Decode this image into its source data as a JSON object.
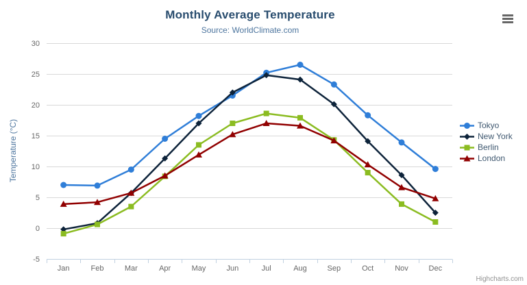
{
  "chart": {
    "title": "Monthly Average Temperature",
    "subtitle": "Source: WorldClimate.com",
    "y_axis_title": "Temperature (°C)",
    "credits": "Highcharts.com"
  },
  "chart_data": {
    "type": "line",
    "categories": [
      "Jan",
      "Feb",
      "Mar",
      "Apr",
      "May",
      "Jun",
      "Jul",
      "Aug",
      "Sep",
      "Oct",
      "Nov",
      "Dec"
    ],
    "series": [
      {
        "name": "Tokyo",
        "color": "#2f7ed8",
        "marker": "circle",
        "values": [
          7.0,
          6.9,
          9.5,
          14.5,
          18.2,
          21.5,
          25.2,
          26.5,
          23.3,
          18.3,
          13.9,
          9.6
        ]
      },
      {
        "name": "New York",
        "color": "#0d233a",
        "marker": "diamond",
        "values": [
          -0.2,
          0.8,
          5.7,
          11.3,
          17.0,
          22.0,
          24.8,
          24.1,
          20.1,
          14.1,
          8.6,
          2.5
        ]
      },
      {
        "name": "Berlin",
        "color": "#8bbc21",
        "marker": "square",
        "values": [
          -0.9,
          0.6,
          3.5,
          8.4,
          13.5,
          17.0,
          18.6,
          17.9,
          14.3,
          9.0,
          3.9,
          1.0
        ]
      },
      {
        "name": "London",
        "color": "#910000",
        "marker": "triangle",
        "values": [
          3.9,
          4.2,
          5.7,
          8.5,
          11.9,
          15.2,
          17.0,
          16.6,
          14.2,
          10.3,
          6.6,
          4.8
        ]
      }
    ],
    "title": "Monthly Average Temperature",
    "subtitle": "Source: WorldClimate.com",
    "xlabel": "",
    "ylabel": "Temperature (°C)",
    "ylim": [
      -5,
      30
    ],
    "y_tick_step": 5,
    "grid": true,
    "legend_position": "right"
  },
  "colors": {
    "title": "#274b6d",
    "subtitle": "#4d759e",
    "axis_label": "#666666",
    "grid": "#d8d8d8",
    "axis_line": "#c0d0e0",
    "legend_text": "#3e576f",
    "credits": "#909090",
    "export_icon": "#666666"
  }
}
